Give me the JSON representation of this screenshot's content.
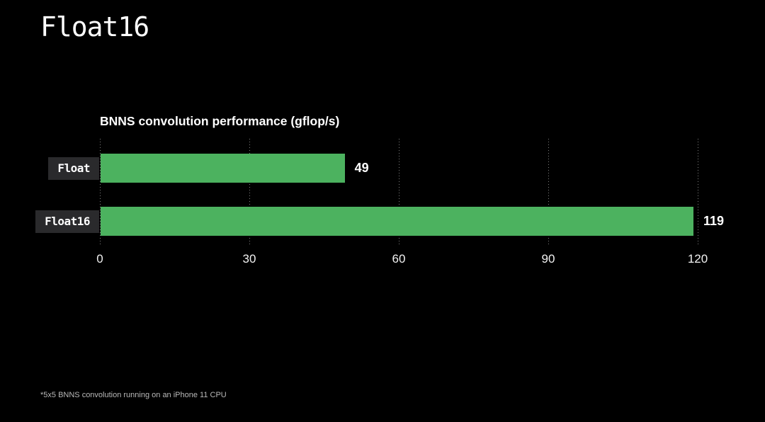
{
  "slide": {
    "title": "Float16",
    "footnote": "*5x5 BNNS convolution running on an iPhone 11 CPU",
    "background_color": "#000000"
  },
  "chart_data": {
    "type": "bar",
    "orientation": "horizontal",
    "title": "BNNS convolution performance (gflop/s)",
    "categories": [
      "Float",
      "Float16"
    ],
    "values": [
      49,
      119
    ],
    "value_labels": [
      "49",
      "119"
    ],
    "xlabel": "gflop/s",
    "ylabel": "",
    "xlim": [
      0,
      120
    ],
    "xticks": [
      0,
      30,
      60,
      90,
      120
    ],
    "grid": "vertical-dotted",
    "legend": "none",
    "bar_color": "#4cb25f",
    "label_box_color": "#2a2a2c",
    "text_color": "#ffffff",
    "gridline_color": "rgba(255,255,255,0.5)"
  }
}
